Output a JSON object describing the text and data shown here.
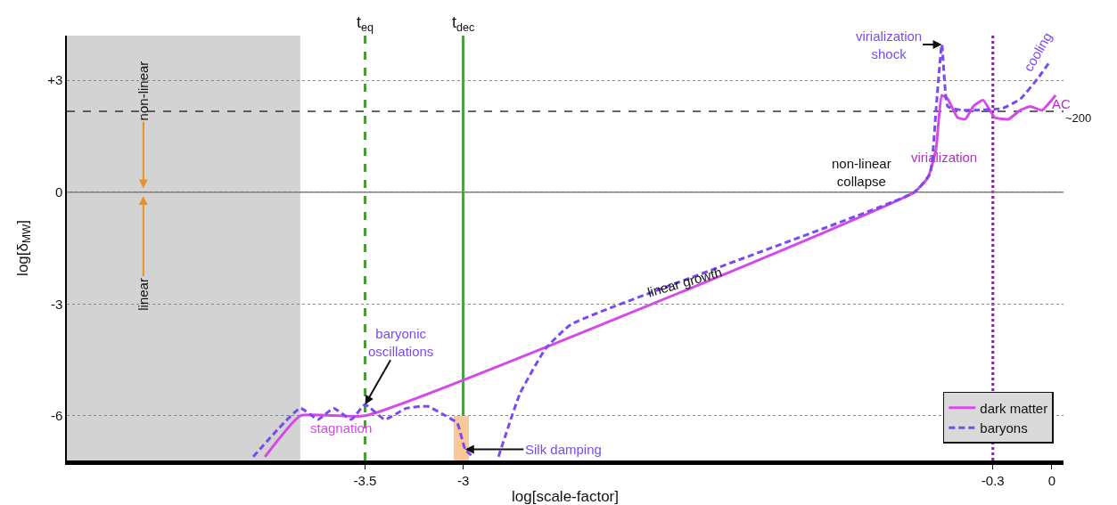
{
  "chart_data": {
    "type": "line",
    "xlabel": "log[scale-factor]",
    "ylabel": "log[δ$_{MW}$]",
    "xlim": [
      -5.02,
      0.06
    ],
    "ylim": [
      -7.2,
      4.2
    ],
    "xticks": [
      -3.5,
      -3,
      -0.3,
      0
    ],
    "yticks": [
      {
        "value": 3,
        "label": "+3"
      },
      0,
      -3,
      -6
    ],
    "grid": "y",
    "legend": "bottom right",
    "series": [
      {
        "name": "dark matter",
        "color": "#d44ae8",
        "line_style": "solid",
        "x": [
          -4.01,
          -3.83,
          -3.5,
          -0.7,
          -0.63,
          -0.59,
          -0.56,
          -0.53,
          -0.48,
          -0.44,
          -0.4,
          -0.35,
          -0.29,
          -0.22,
          -0.16,
          -0.11,
          -0.05,
          0.02
        ],
        "values": [
          -7.1,
          -6,
          -6,
          0,
          0.4,
          1.15,
          2.6,
          2.5,
          2.0,
          1.96,
          2.3,
          2.47,
          2.0,
          1.96,
          2.2,
          2.3,
          2.2,
          2.6
        ]
      },
      {
        "name": "baryons",
        "color": "#7a4af0",
        "line_style": "dashed",
        "x": [
          -4.07,
          -3.83,
          -3.74,
          -3.66,
          -3.57,
          -3.5,
          -3.4,
          -3.29,
          -3.18,
          -3.09,
          -3.03,
          -2.99,
          -2.95,
          -2.88,
          -2.82,
          -2.71,
          -2.58,
          -2.45,
          -0.7,
          -0.62,
          -0.59,
          -0.56,
          -0.53,
          -0.46,
          -0.38,
          -0.25,
          -0.16,
          -0.07,
          -0.01
        ],
        "values": [
          -7.1,
          -5.8,
          -6.1,
          -5.8,
          -6.1,
          -5.7,
          -6.1,
          -5.8,
          -5.75,
          -6.0,
          -6.2,
          -6.9,
          -7.1,
          null,
          -7.1,
          -5.4,
          -4.2,
          -3.55,
          0,
          0.5,
          2.2,
          3.96,
          2.3,
          2.2,
          2.2,
          2.25,
          2.5,
          3.06,
          3.5
        ]
      },
      {
        "type": "bar",
        "color": "#f8c89a",
        "x": [
          -3.01
        ],
        "values": [
          1.2
        ],
        "base": [
          -7.2
        ]
      }
    ],
    "bands": [
      {
        "axis": "x",
        "from": -5.02,
        "to": -3.83,
        "color": "#d3d3d3"
      }
    ],
    "ref_lines": [
      {
        "axis": "x",
        "value": -3.5,
        "label": "t$_{eq}$",
        "color": "#4a9a3a",
        "line_style": "dashed"
      },
      {
        "axis": "x",
        "value": -3,
        "label": "t$_{dec}$",
        "color": "#4aa040",
        "line_style": "solid"
      },
      {
        "axis": "x",
        "value": -0.3,
        "color": "#7a2a8a",
        "line_style": "dotted"
      },
      {
        "axis": "y",
        "value": 0,
        "color": "#777777",
        "line_style": "solid"
      },
      {
        "axis": "y",
        "value": 2.17,
        "color": "#333333",
        "line_style": "dashed"
      }
    ],
    "annotations": [
      {
        "text": "non-linear",
        "x": -4.63,
        "y": 0.1
      },
      {
        "text": "linear",
        "x": -4.63,
        "y": -0.1
      },
      {
        "text": "stagnation",
        "x": -3.66,
        "y": -6
      },
      {
        "text": "baryonic\noscillations",
        "x": -3.5,
        "y": -5.7
      },
      {
        "text": "Silk damping",
        "x": -2.99,
        "y": -6.9
      },
      "linear growth",
      {
        "text": "virialization\nshock",
        "x": -0.56,
        "y": 3.96
      },
      {
        "text": "non-linear\ncollapse",
        "x": -0.63,
        "y": 0.4
      },
      "virialization",
      {
        "text": "cooling",
        "x": -0.07,
        "y": 3.06
      },
      {
        "text": "AC",
        "x": 0.02,
        "y": 2.6
      },
      "~200"
    ]
  }
}
